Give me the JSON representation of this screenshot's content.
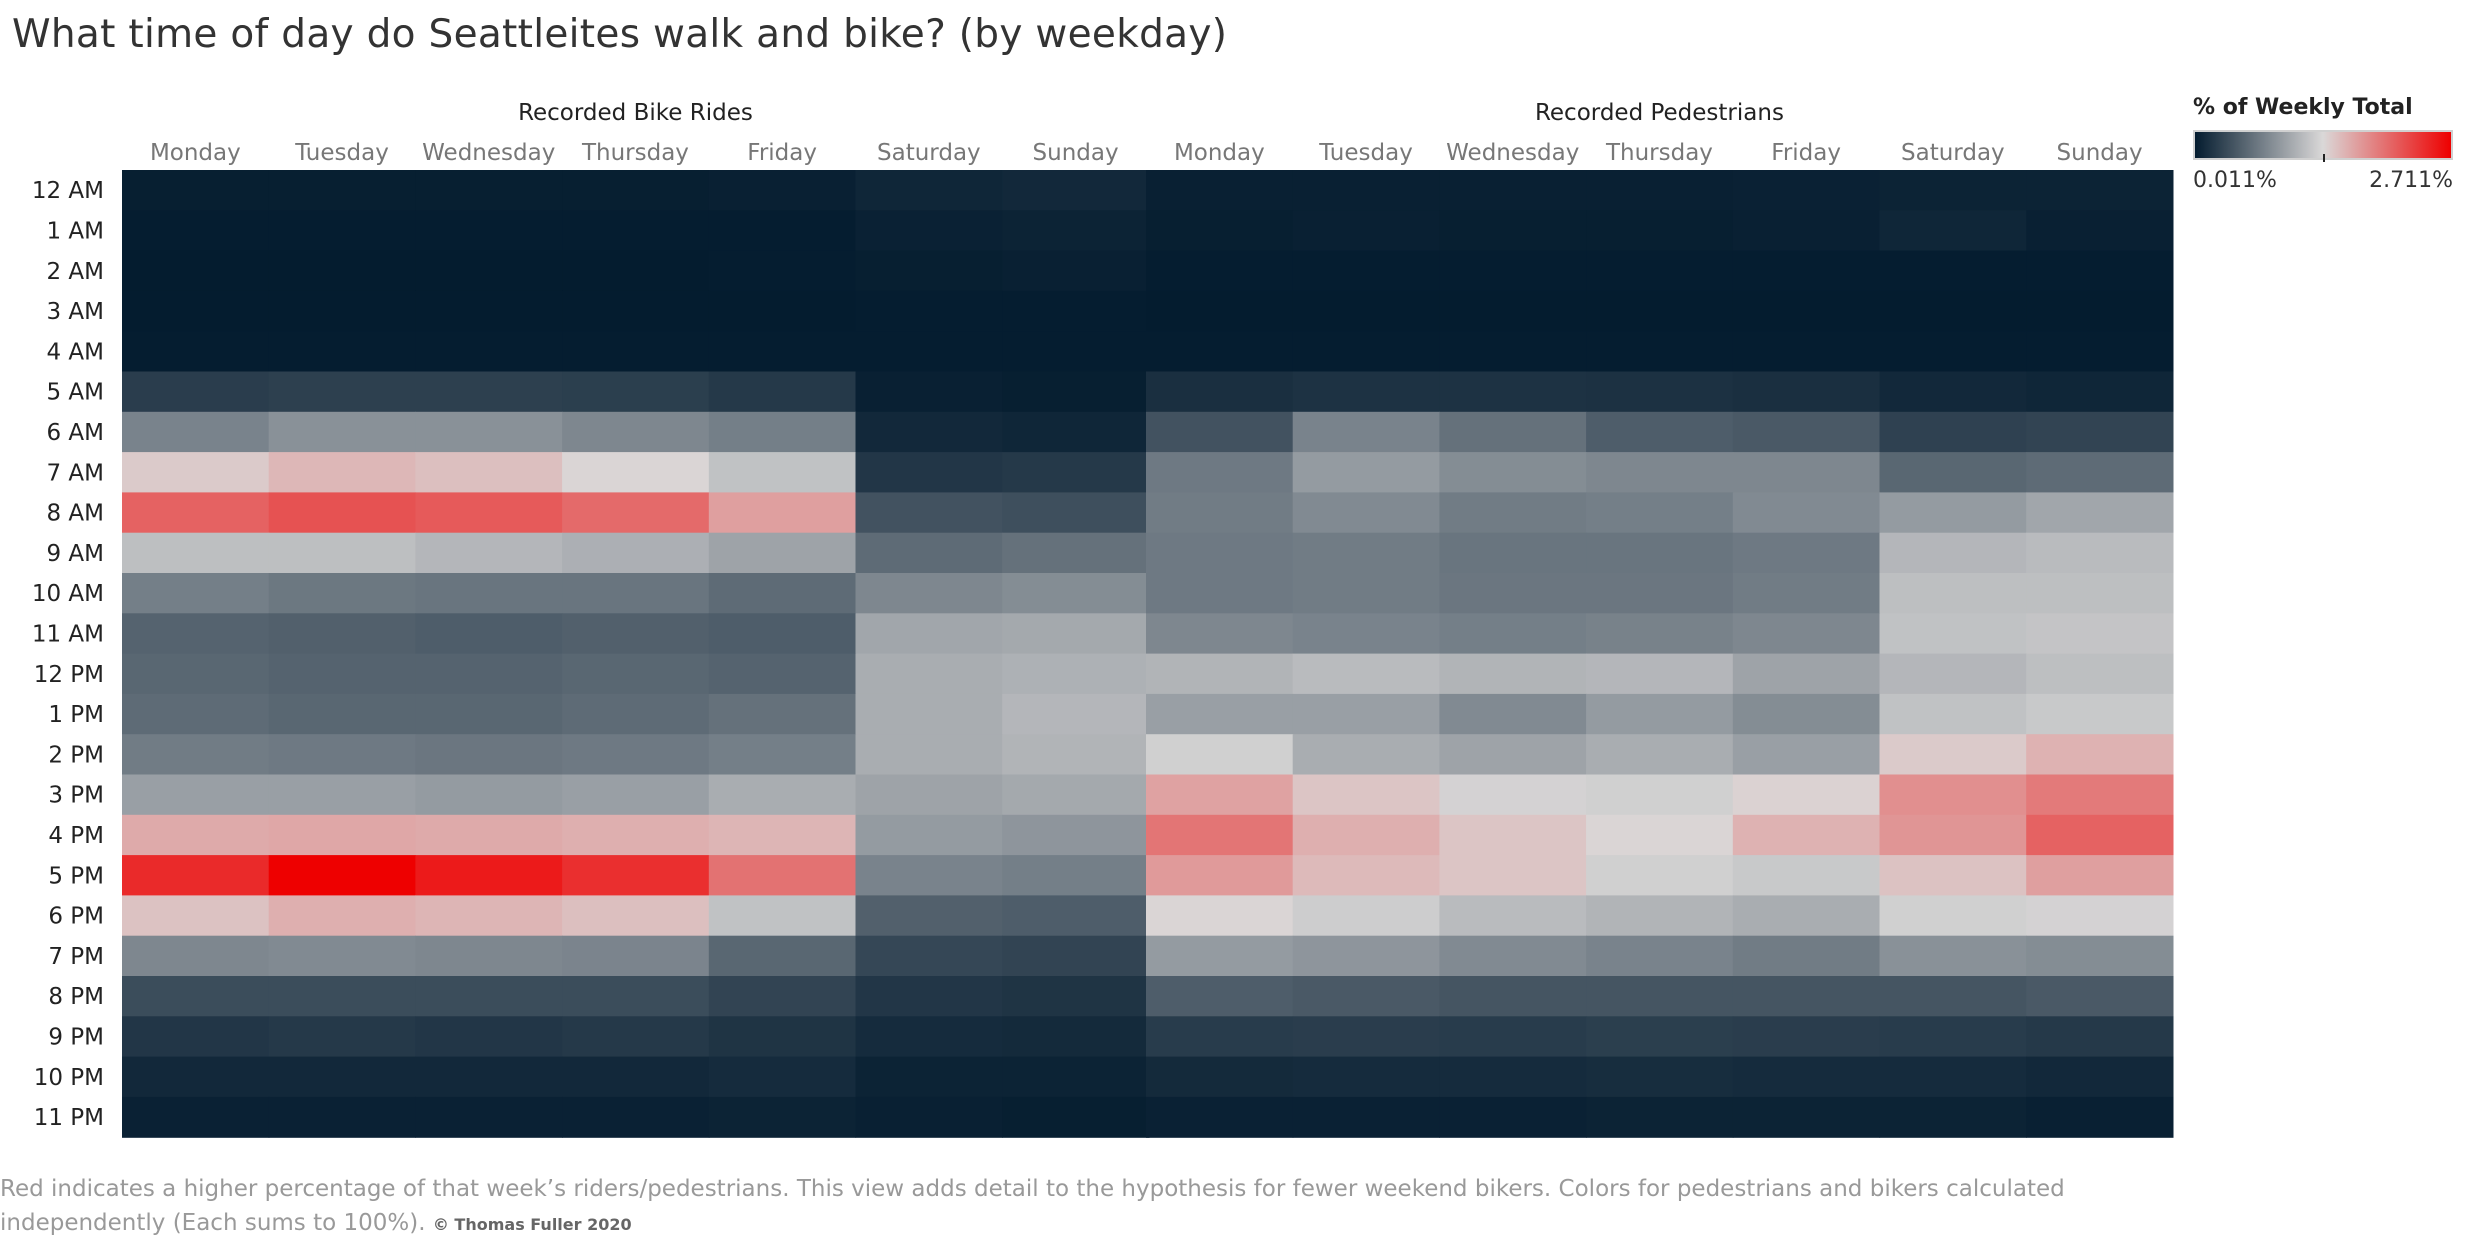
{
  "title": "What time of day do Seattleites walk and bike?  (by weekday)",
  "legend": {
    "title": "% of Weekly Total",
    "min_label": "0.011%",
    "max_label": "2.711%",
    "min_value": 0.011,
    "max_value": 2.711,
    "colors": {
      "low": "#041c2f",
      "mid": "#dad8d8",
      "high": "#ee0000"
    }
  },
  "footnote": {
    "text": "Red indicates a higher percentage of that week’s riders/pedestrians. This view adds detail to the hypothesis for fewer weekend bikers. Colors for pedestrians and bikers calculated independently (Each sums to 100%).",
    "credit": "© Thomas Fuller 2020"
  },
  "chart_data": {
    "type": "heatmap",
    "title": "What time of day do Seattleites walk and bike?  (by weekday)",
    "value_unit": "% of Weekly Total",
    "hours": [
      "12 AM",
      "1 AM",
      "2 AM",
      "3 AM",
      "4 AM",
      "5 AM",
      "6 AM",
      "7 AM",
      "8 AM",
      "9 AM",
      "10 AM",
      "11 AM",
      "12 PM",
      "1 PM",
      "2 PM",
      "3 PM",
      "4 PM",
      "5 PM",
      "6 PM",
      "7 PM",
      "8 PM",
      "9 PM",
      "10 PM",
      "11 PM"
    ],
    "panels": [
      {
        "title": "Recorded Bike Rides",
        "days": [
          "Monday",
          "Tuesday",
          "Wednesday",
          "Thursday",
          "Friday",
          "Saturday",
          "Sunday"
        ],
        "values": [
          [
            0.03,
            0.03,
            0.03,
            0.03,
            0.04,
            0.08,
            0.1
          ],
          [
            0.02,
            0.02,
            0.02,
            0.02,
            0.02,
            0.05,
            0.06
          ],
          [
            0.01,
            0.01,
            0.01,
            0.01,
            0.02,
            0.03,
            0.04
          ],
          [
            0.01,
            0.01,
            0.01,
            0.01,
            0.01,
            0.02,
            0.02
          ],
          [
            0.02,
            0.02,
            0.02,
            0.02,
            0.02,
            0.02,
            0.02
          ],
          [
            0.25,
            0.27,
            0.27,
            0.26,
            0.22,
            0.04,
            0.03
          ],
          [
            0.75,
            0.85,
            0.85,
            0.78,
            0.72,
            0.1,
            0.08
          ],
          [
            1.45,
            1.57,
            1.52,
            1.38,
            1.2,
            0.2,
            0.22
          ],
          [
            2.1,
            2.2,
            2.15,
            2.05,
            1.72,
            0.4,
            0.38
          ],
          [
            1.18,
            1.18,
            1.12,
            1.07,
            0.98,
            0.58,
            0.62
          ],
          [
            0.72,
            0.67,
            0.65,
            0.65,
            0.58,
            0.78,
            0.82
          ],
          [
            0.52,
            0.5,
            0.48,
            0.5,
            0.48,
            1.0,
            1.02
          ],
          [
            0.55,
            0.52,
            0.52,
            0.55,
            0.52,
            1.05,
            1.08
          ],
          [
            0.58,
            0.55,
            0.55,
            0.58,
            0.62,
            1.05,
            1.12
          ],
          [
            0.7,
            0.68,
            0.66,
            0.68,
            0.72,
            1.05,
            1.1
          ],
          [
            0.95,
            0.95,
            0.92,
            0.95,
            1.05,
            0.98,
            1.02
          ],
          [
            1.65,
            1.67,
            1.65,
            1.62,
            1.58,
            0.92,
            0.88
          ],
          [
            2.45,
            2.71,
            2.55,
            2.42,
            2.0,
            0.75,
            0.72
          ],
          [
            1.5,
            1.62,
            1.58,
            1.52,
            1.2,
            0.5,
            0.48
          ],
          [
            0.78,
            0.8,
            0.78,
            0.76,
            0.55,
            0.32,
            0.3
          ],
          [
            0.36,
            0.36,
            0.36,
            0.36,
            0.3,
            0.2,
            0.18
          ],
          [
            0.2,
            0.22,
            0.2,
            0.22,
            0.18,
            0.12,
            0.11
          ],
          [
            0.1,
            0.1,
            0.1,
            0.1,
            0.12,
            0.06,
            0.06
          ],
          [
            0.05,
            0.05,
            0.05,
            0.05,
            0.06,
            0.04,
            0.03
          ]
        ]
      },
      {
        "title": "Recorded Pedestrians",
        "days": [
          "Monday",
          "Tuesday",
          "Wednesday",
          "Thursday",
          "Friday",
          "Saturday",
          "Sunday"
        ],
        "values": [
          [
            0.04,
            0.04,
            0.04,
            0.04,
            0.05,
            0.06,
            0.06
          ],
          [
            0.03,
            0.04,
            0.03,
            0.03,
            0.04,
            0.08,
            0.04
          ],
          [
            0.02,
            0.02,
            0.02,
            0.02,
            0.02,
            0.02,
            0.02
          ],
          [
            0.01,
            0.01,
            0.01,
            0.01,
            0.01,
            0.01,
            0.01
          ],
          [
            0.02,
            0.02,
            0.02,
            0.02,
            0.02,
            0.02,
            0.02
          ],
          [
            0.15,
            0.17,
            0.17,
            0.16,
            0.15,
            0.1,
            0.08
          ],
          [
            0.4,
            0.75,
            0.62,
            0.48,
            0.45,
            0.28,
            0.3
          ],
          [
            0.68,
            0.92,
            0.82,
            0.78,
            0.78,
            0.55,
            0.58
          ],
          [
            0.7,
            0.8,
            0.7,
            0.72,
            0.8,
            0.92,
            1.0
          ],
          [
            0.68,
            0.7,
            0.65,
            0.65,
            0.68,
            1.12,
            1.15
          ],
          [
            0.68,
            0.7,
            0.66,
            0.66,
            0.7,
            1.18,
            1.18
          ],
          [
            0.78,
            0.75,
            0.72,
            0.74,
            0.78,
            1.2,
            1.22
          ],
          [
            1.1,
            1.15,
            1.1,
            1.12,
            0.98,
            1.12,
            1.18
          ],
          [
            0.95,
            0.95,
            0.8,
            0.92,
            0.82,
            1.2,
            1.25
          ],
          [
            1.3,
            1.05,
            0.98,
            1.05,
            0.95,
            1.45,
            1.6
          ],
          [
            1.7,
            1.48,
            1.32,
            1.3,
            1.4,
            1.82,
            1.95
          ],
          [
            1.98,
            1.62,
            1.48,
            1.38,
            1.6,
            1.78,
            2.1
          ],
          [
            1.75,
            1.55,
            1.48,
            1.3,
            1.25,
            1.5,
            1.72
          ],
          [
            1.38,
            1.28,
            1.15,
            1.1,
            1.05,
            1.3,
            1.32
          ],
          [
            0.92,
            0.88,
            0.8,
            0.75,
            0.7,
            0.85,
            0.82
          ],
          [
            0.48,
            0.45,
            0.42,
            0.42,
            0.42,
            0.42,
            0.45
          ],
          [
            0.24,
            0.25,
            0.24,
            0.26,
            0.25,
            0.24,
            0.22
          ],
          [
            0.11,
            0.12,
            0.12,
            0.13,
            0.12,
            0.12,
            0.1
          ],
          [
            0.05,
            0.05,
            0.05,
            0.06,
            0.06,
            0.06,
            0.04
          ]
        ]
      }
    ]
  }
}
